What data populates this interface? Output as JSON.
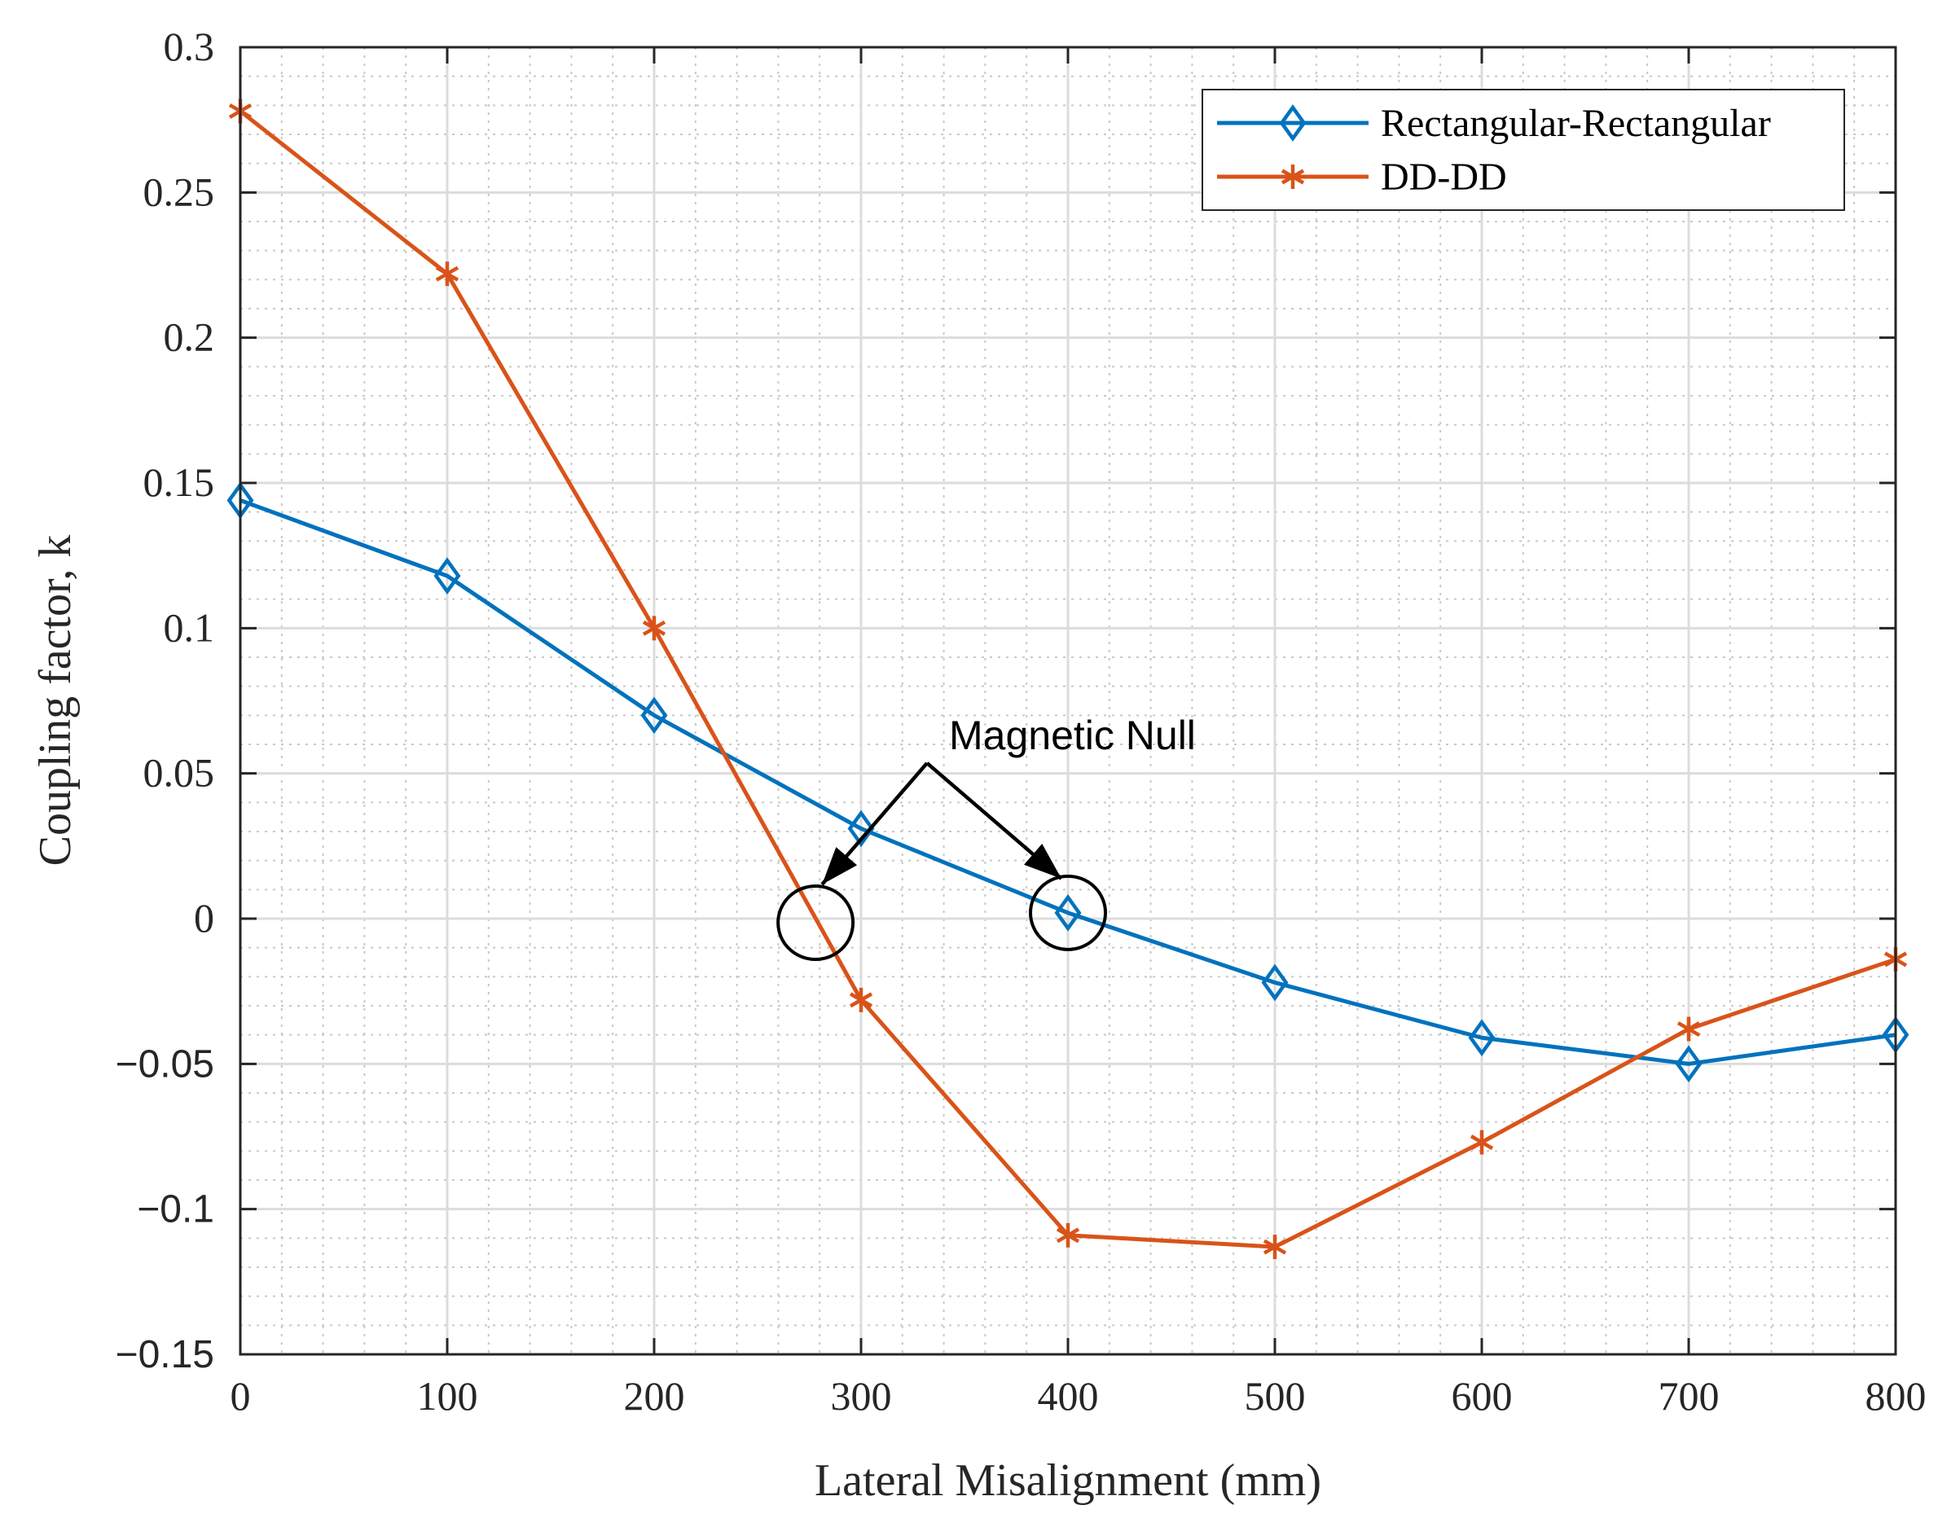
{
  "chart_data": {
    "type": "line",
    "title": "",
    "xlabel": "Lateral Misalignment (mm)",
    "ylabel": "Coupling factor, k",
    "xlim": [
      0,
      800
    ],
    "ylim": [
      -0.15,
      0.3
    ],
    "xticks": [
      0,
      100,
      200,
      300,
      400,
      500,
      600,
      700,
      800
    ],
    "xtick_labels": [
      "0",
      "100",
      "200",
      "300",
      "400",
      "500",
      "600",
      "700",
      "800"
    ],
    "yticks": [
      0.3,
      0.25,
      0.2,
      0.15,
      0.1,
      0.05,
      0,
      -0.05,
      -0.1,
      -0.15
    ],
    "ytick_labels": [
      "0.3",
      "0.25",
      "0.2",
      "0.15",
      "0.1",
      "0.05",
      "0",
      "−0.05",
      "−0.1",
      "−0.15"
    ],
    "grid": true,
    "minor_grid": true,
    "legend_position": "top-right",
    "x": [
      0,
      100,
      200,
      300,
      400,
      500,
      600,
      700,
      800
    ],
    "series": [
      {
        "name": "Rectangular-Rectangular",
        "color": "#0072BD",
        "marker": "diamond",
        "values": [
          0.144,
          0.118,
          0.07,
          0.031,
          0.002,
          -0.022,
          -0.041,
          -0.05,
          -0.04
        ]
      },
      {
        "name": "DD-DD",
        "color": "#D95319",
        "marker": "asterisk",
        "values": [
          0.278,
          0.222,
          0.1,
          -0.028,
          -0.109,
          -0.113,
          -0.077,
          -0.038,
          -0.014
        ]
      }
    ],
    "annotations": [
      {
        "text": "Magnetic Null",
        "targets": [
          {
            "series": "DD-DD",
            "x": 278,
            "y": 0
          },
          {
            "series": "Rectangular-Rectangular",
            "x": 400,
            "y": 0.002
          }
        ]
      }
    ]
  }
}
